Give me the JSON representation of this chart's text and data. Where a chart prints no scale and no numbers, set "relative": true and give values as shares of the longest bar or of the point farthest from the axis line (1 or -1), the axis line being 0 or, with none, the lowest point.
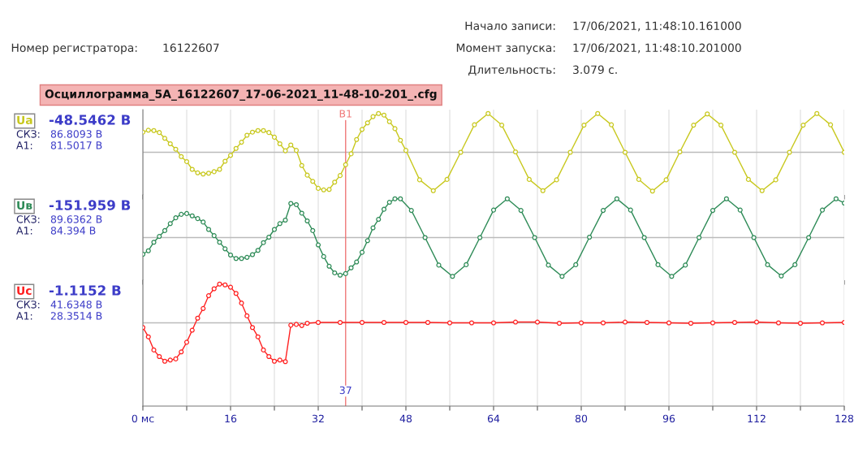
{
  "chart_data": [
    {
      "type": "other",
      "title": "Осциллограмма_5А_16122607_17-06-2021_11-48-10-201_.cfg",
      "annotations": [
        "Номер регистратора:",
        "16122607",
        "Начало записи:",
        "17/06/2021, 11:48:10.161000",
        "Момент запуска:",
        "17/06/2021, 11:48:10.201000",
        "Длительность:",
        "3.079 с."
      ]
    },
    {
      "type": "line",
      "relative": true,
      "marker": "circle",
      "line_style": "solid",
      "grid": "x",
      "tick_labels": false,
      "xlim": [
        0,
        128
      ],
      "xticks": [
        {
          "value": 0,
          "label": null
        },
        {
          "value": 8,
          "label": null
        },
        {
          "value": 16,
          "label": null
        },
        {
          "value": 24,
          "label": null
        },
        {
          "value": 32,
          "label": null
        },
        {
          "value": 40,
          "label": null
        },
        {
          "value": 48,
          "label": null
        },
        {
          "value": 56,
          "label": null
        },
        {
          "value": 64,
          "label": null
        },
        {
          "value": 72,
          "label": null
        },
        {
          "value": 80,
          "label": null
        },
        {
          "value": 88,
          "label": null
        },
        {
          "value": 96,
          "label": null
        },
        {
          "value": 104,
          "label": null
        },
        {
          "value": 112,
          "label": null
        },
        {
          "value": 120,
          "label": null
        },
        {
          "value": 128,
          "label": null
        }
      ],
      "annotations": [
        "-48.5462 В",
        "СКЗ:",
        "86.8093 В",
        "А1:",
        "81.5017 В"
      ],
      "ref_lines": [
        {
          "axis": "x",
          "value": 37,
          "label": "В1",
          "color": "#f07878"
        }
      ],
      "series": [
        {
          "name": "Ua",
          "color": "#c8c81e",
          "x": [
            0,
            1,
            2,
            3,
            4,
            5,
            6,
            7,
            8,
            9,
            10,
            11,
            12,
            13,
            14,
            15,
            16,
            17,
            18,
            19,
            20,
            21,
            22,
            23,
            24,
            25,
            26,
            27,
            28,
            29,
            30,
            31,
            32,
            33,
            34,
            35,
            36,
            37,
            38,
            39,
            40,
            41,
            42,
            43,
            44,
            45,
            46,
            47,
            48,
            50.5,
            53,
            55.5,
            58,
            60.5,
            63,
            65.5,
            68,
            70.5,
            73,
            75.5,
            78,
            80.5,
            83,
            85.5,
            88,
            90.5,
            93,
            95.5,
            98,
            100.5,
            103,
            105.5,
            108,
            110.5,
            113,
            115.5,
            118,
            120.5,
            123,
            125.5,
            128
          ],
          "values": [
            0.52,
            0.57,
            0.56,
            0.51,
            0.36,
            0.22,
            0.08,
            -0.11,
            -0.24,
            -0.44,
            -0.53,
            -0.56,
            -0.54,
            -0.5,
            -0.44,
            -0.23,
            -0.08,
            0.1,
            0.26,
            0.44,
            0.52,
            0.56,
            0.56,
            0.51,
            0.39,
            0.22,
            0.04,
            0.19,
            0.05,
            -0.34,
            -0.59,
            -0.75,
            -0.93,
            -0.97,
            -0.96,
            -0.77,
            -0.6,
            -0.32,
            -0.04,
            0.33,
            0.59,
            0.76,
            0.92,
            1.0,
            0.96,
            0.79,
            0.61,
            0.31,
            0.05,
            -0.71,
            -0.99,
            -0.7,
            0.0,
            0.71,
            1.0,
            0.7,
            0.01,
            -0.7,
            -0.99,
            -0.71,
            0.0,
            0.7,
            1.0,
            0.71,
            0.0,
            -0.7,
            -1.0,
            -0.71,
            0.01,
            0.7,
            0.99,
            0.7,
            0.0,
            -0.7,
            -0.99,
            -0.71,
            0.0,
            0.7,
            1.0,
            0.71,
            0.0
          ]
        }
      ]
    },
    {
      "type": "line",
      "relative": true,
      "marker": "circle",
      "line_style": "solid",
      "grid": "x",
      "tick_labels": false,
      "xlim": [
        0,
        128
      ],
      "xticks": [
        {
          "value": 0,
          "label": null
        },
        {
          "value": 8,
          "label": null
        },
        {
          "value": 16,
          "label": null
        },
        {
          "value": 24,
          "label": null
        },
        {
          "value": 32,
          "label": null
        },
        {
          "value": 40,
          "label": null
        },
        {
          "value": 48,
          "label": null
        },
        {
          "value": 56,
          "label": null
        },
        {
          "value": 64,
          "label": null
        },
        {
          "value": 72,
          "label": null
        },
        {
          "value": 80,
          "label": null
        },
        {
          "value": 88,
          "label": null
        },
        {
          "value": 96,
          "label": null
        },
        {
          "value": 104,
          "label": null
        },
        {
          "value": 112,
          "label": null
        },
        {
          "value": 120,
          "label": null
        },
        {
          "value": 128,
          "label": null
        }
      ],
      "annotations": [
        "-151.959 В",
        "СКЗ:",
        "89.6362 В",
        "А1:",
        "84.394 В"
      ],
      "ref_lines": [
        {
          "axis": "x",
          "value": 37,
          "color": "#f07878"
        }
      ],
      "series": [
        {
          "name": "Uв",
          "color": "#2e8b57",
          "x": [
            0,
            1,
            2,
            3,
            4,
            5,
            6,
            7,
            8,
            9,
            10,
            11,
            12,
            13,
            14,
            15,
            16,
            17,
            18,
            19,
            20,
            21,
            22,
            23,
            24,
            25,
            26,
            27,
            28,
            29,
            30,
            31,
            32,
            33,
            34,
            35,
            36,
            37,
            38,
            39,
            40,
            41,
            42,
            43,
            44,
            45,
            46,
            47,
            49,
            51.5,
            54,
            56.5,
            59,
            61.5,
            64,
            66.5,
            69,
            71.5,
            74,
            76.5,
            79,
            81.5,
            84,
            86.5,
            89,
            91.5,
            94,
            96.5,
            99,
            101.5,
            104,
            106.5,
            109,
            111.5,
            114,
            116.5,
            119,
            121.5,
            124,
            126.5,
            128
          ],
          "values": [
            -0.43,
            -0.34,
            -0.12,
            0.03,
            0.18,
            0.36,
            0.51,
            0.6,
            0.62,
            0.56,
            0.49,
            0.4,
            0.21,
            0.05,
            -0.12,
            -0.29,
            -0.45,
            -0.54,
            -0.54,
            -0.51,
            -0.44,
            -0.33,
            -0.13,
            0.01,
            0.21,
            0.36,
            0.45,
            0.88,
            0.85,
            0.63,
            0.43,
            0.18,
            -0.19,
            -0.49,
            -0.74,
            -0.91,
            -0.97,
            -0.93,
            -0.78,
            -0.63,
            -0.38,
            -0.08,
            0.25,
            0.47,
            0.73,
            0.91,
            1.0,
            1.0,
            0.7,
            0.0,
            -0.71,
            -1.0,
            -0.7,
            0.0,
            0.71,
            1.0,
            0.7,
            0.0,
            -0.71,
            -1.0,
            -0.7,
            0.01,
            0.7,
            1.0,
            0.71,
            0.0,
            -0.7,
            -1.0,
            -0.71,
            0.0,
            0.7,
            1.0,
            0.71,
            0.0,
            -0.7,
            -0.99,
            -0.7,
            0.0,
            0.71,
            1.0,
            0.89
          ]
        }
      ]
    },
    {
      "type": "line",
      "relative": true,
      "marker": "circle",
      "line_style": "solid",
      "grid": "x",
      "tick_labels": "x",
      "xlim": [
        0,
        128
      ],
      "xticks": [
        {
          "value": 0,
          "label": "0 мс"
        },
        {
          "value": 8,
          "label": null
        },
        16,
        {
          "value": 24,
          "label": null
        },
        32,
        {
          "value": 40,
          "label": null
        },
        48,
        {
          "value": 56,
          "label": null
        },
        64,
        {
          "value": 72,
          "label": null
        },
        80,
        {
          "value": 88,
          "label": null
        },
        96,
        {
          "value": 104,
          "label": null
        },
        112,
        {
          "value": 120,
          "label": null
        },
        128
      ],
      "annotations": [
        "-1.1152 В",
        "СКЗ:",
        "41.6348 В",
        "А1:",
        "28.3514 В"
      ],
      "ref_lines": [
        {
          "axis": "x",
          "value": 37,
          "label": "37",
          "color": "#f07878"
        }
      ],
      "series": [
        {
          "name": "Uc",
          "color": "#ff2020",
          "x": [
            0,
            1,
            2,
            3,
            4,
            5,
            6,
            7,
            8,
            9,
            10,
            11,
            12,
            13,
            14,
            15,
            16,
            17,
            18,
            19,
            20,
            21,
            22,
            23,
            24,
            25,
            26,
            27,
            28,
            29,
            30,
            32,
            36,
            40,
            44,
            48,
            52,
            56,
            60,
            64,
            68,
            72,
            76,
            80,
            84,
            88,
            92,
            96,
            100,
            104,
            108,
            112,
            116,
            120,
            124,
            128
          ],
          "values": [
            -0.12,
            -0.36,
            -0.7,
            -0.87,
            -0.99,
            -0.96,
            -0.93,
            -0.75,
            -0.5,
            -0.19,
            0.12,
            0.37,
            0.7,
            0.88,
            1.0,
            0.98,
            0.92,
            0.76,
            0.51,
            0.18,
            -0.12,
            -0.36,
            -0.7,
            -0.87,
            -0.99,
            -0.96,
            -1.0,
            -0.06,
            -0.04,
            -0.07,
            -0.01,
            0.01,
            0.01,
            0.01,
            0.01,
            0.01,
            0.01,
            0.0,
            0.0,
            0.0,
            0.02,
            0.02,
            -0.01,
            0.0,
            0.0,
            0.02,
            0.01,
            0.0,
            -0.01,
            0.0,
            0.01,
            0.02,
            0.0,
            -0.01,
            0.0,
            0.01
          ]
        }
      ]
    }
  ]
}
